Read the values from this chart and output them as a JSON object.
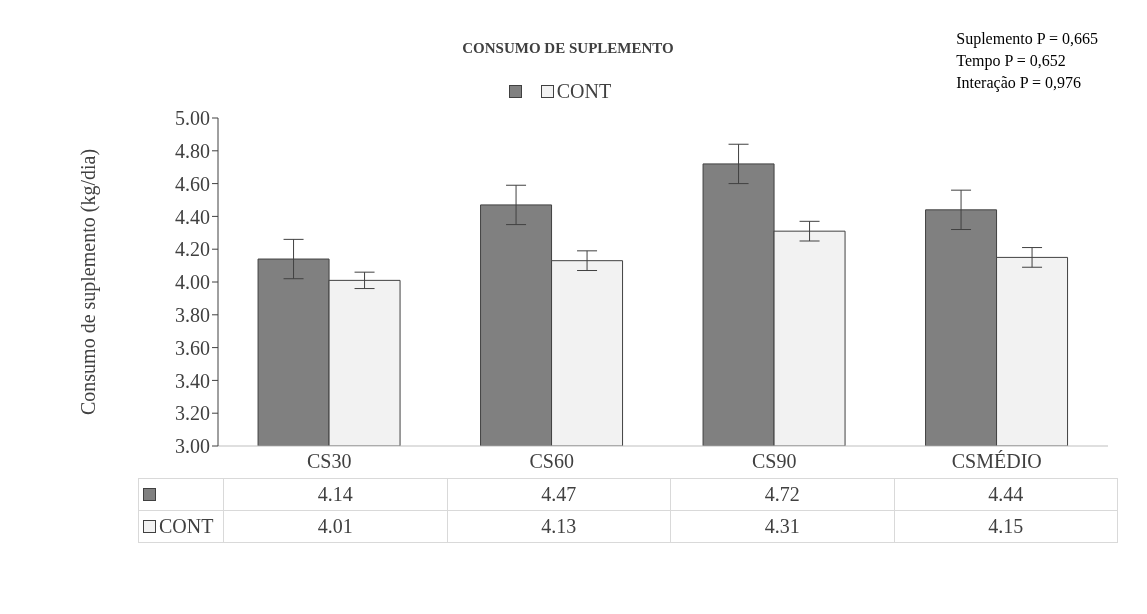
{
  "chart_data": {
    "type": "bar",
    "title": "CONSUMO DE SUPLEMENTO",
    "ylabel": "Consumo de suplemento (kg/dia)",
    "categories": [
      "CS30",
      "CS60",
      "CS90",
      "CSMÉDIO"
    ],
    "series": [
      {
        "color": "#808080",
        "values": [
          4.14,
          4.47,
          4.72,
          4.44
        ],
        "errors": [
          0.12,
          0.12,
          0.12,
          0.12
        ]
      },
      {
        "name": "CONT",
        "color": "#f2f2f2",
        "values": [
          4.01,
          4.13,
          4.31,
          4.15
        ],
        "errors": [
          0.05,
          0.06,
          0.06,
          0.06
        ]
      }
    ],
    "ylim": [
      3,
      5
    ],
    "yticks": [
      {
        "value": 3,
        "label": "3.00"
      },
      {
        "value": 3.2,
        "label": "3.20"
      },
      {
        "value": 3.4,
        "label": "3.40"
      },
      {
        "value": 3.6,
        "label": "3.60"
      },
      {
        "value": 3.8,
        "label": "3.80"
      },
      {
        "value": 4,
        "label": "4.00"
      },
      {
        "value": 4.2,
        "label": "4.20"
      },
      {
        "value": 4.4,
        "label": "4.40"
      },
      {
        "value": 4.6,
        "label": "4.60"
      },
      {
        "value": 4.8,
        "label": "4.80"
      },
      {
        "value": 5,
        "label": "5.00"
      }
    ],
    "grid": false,
    "legend": "top",
    "data_labels": true,
    "annotations": [
      "Suplemento P = 0,665",
      "Tempo P = 0,652",
      "Interação P = 0,976"
    ]
  }
}
